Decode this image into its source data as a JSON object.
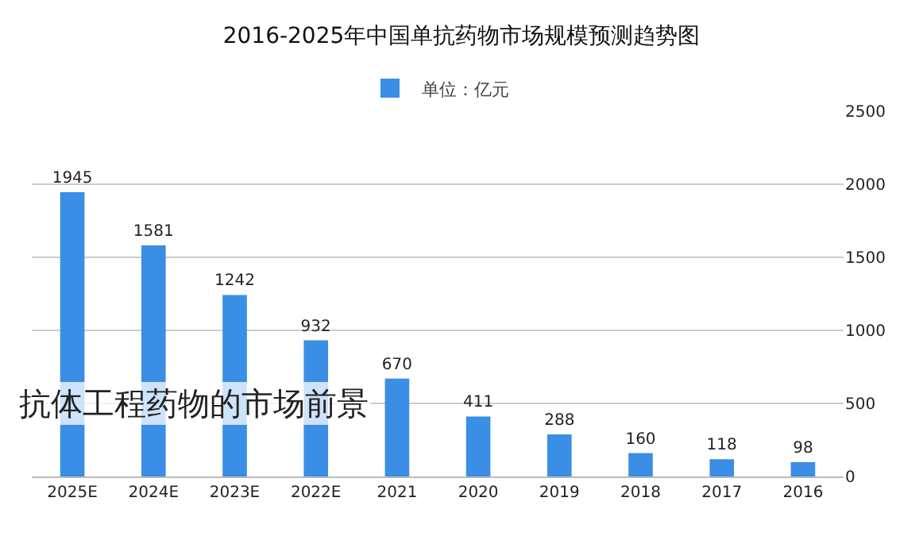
{
  "chart_data": {
    "type": "bar",
    "title": "2016-2025年中国单抗药物市场规模预测趋势图",
    "categories": [
      "2025E",
      "2024E",
      "2023E",
      "2022E",
      "2021",
      "2020",
      "2019",
      "2018",
      "2017",
      "2016"
    ],
    "series": [
      {
        "name": "单位：亿元",
        "color": "#3a8ee6",
        "values": [
          1945,
          1581,
          1242,
          932,
          670,
          411,
          288,
          160,
          118,
          98
        ]
      }
    ],
    "ylim": [
      0,
      2500
    ],
    "yticks": [
      0,
      500,
      1000,
      1500,
      2000,
      2500
    ],
    "grid": "y",
    "legend": "top",
    "data_labels": true,
    "annotations": [
      "抗体工程药物的市场前景"
    ]
  }
}
